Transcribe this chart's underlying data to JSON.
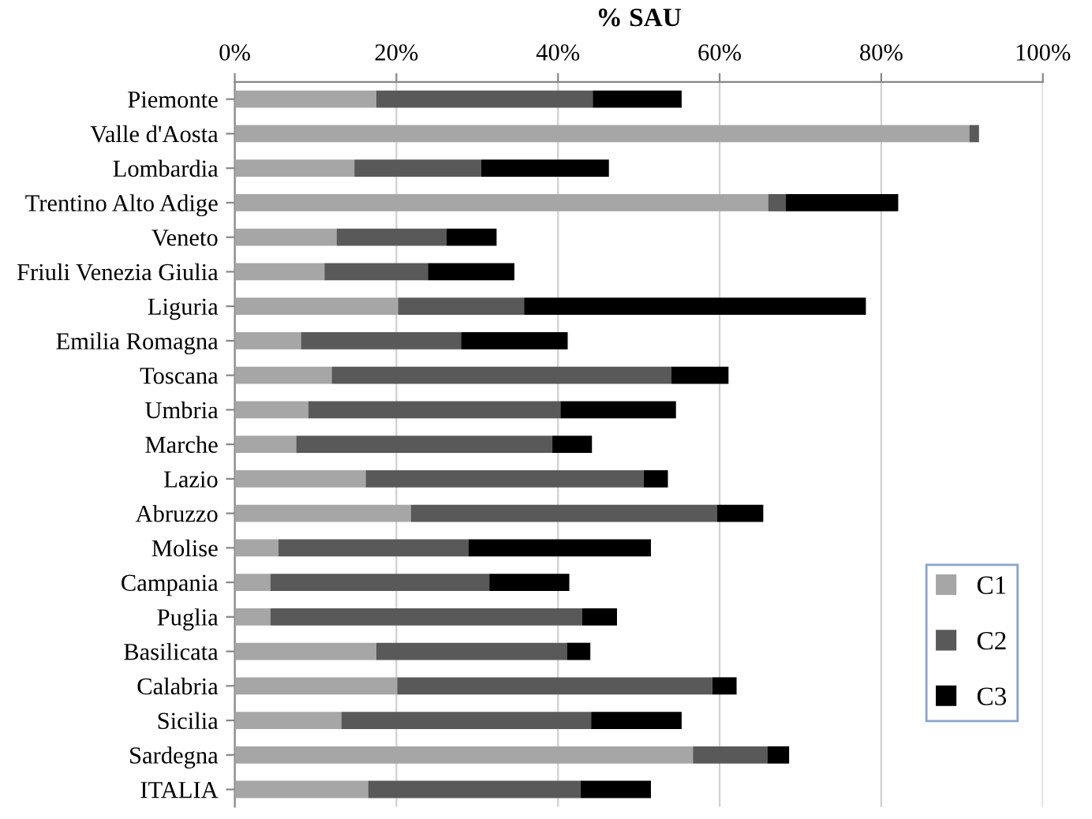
{
  "chart_data": {
    "type": "bar",
    "orientation": "horizontal",
    "stacked": true,
    "xlabel": "% SAU",
    "categories": [
      "Piemonte",
      "Valle d'Aosta",
      "Lombardia",
      "Trentino Alto Adige",
      "Veneto",
      "Friuli Venezia Giulia",
      "Liguria",
      "Emilia Romagna",
      "Toscana",
      "Umbria",
      "Marche",
      "Lazio",
      "Abruzzo",
      "Molise",
      "Campania",
      "Puglia",
      "Basilicata",
      "Calabria",
      "Sicilia",
      "Sardegna",
      "ITALIA"
    ],
    "series": [
      {
        "name": "C1",
        "color": "#a6a6a6",
        "values": [
          17.5,
          90.9,
          14.8,
          66.0,
          12.6,
          11.1,
          20.2,
          8.2,
          12.0,
          9.1,
          7.6,
          16.2,
          21.8,
          5.4,
          4.4,
          4.4,
          17.5,
          20.1,
          13.2,
          56.7,
          16.5
        ]
      },
      {
        "name": "C2",
        "color": "#595959",
        "values": [
          26.8,
          1.2,
          15.7,
          2.2,
          13.6,
          12.8,
          15.6,
          19.8,
          42.0,
          31.2,
          31.7,
          34.4,
          37.9,
          23.5,
          27.1,
          38.6,
          23.6,
          39.0,
          30.9,
          9.2,
          26.3
        ]
      },
      {
        "name": "C3",
        "color": "#000000",
        "values": [
          11.0,
          0,
          15.8,
          13.9,
          6.2,
          10.7,
          42.3,
          13.2,
          7.1,
          14.3,
          4.9,
          3.0,
          5.7,
          22.6,
          9.9,
          4.3,
          2.9,
          3.0,
          11.2,
          2.7,
          8.7
        ]
      }
    ],
    "xlim": [
      0,
      100
    ],
    "xticks": [
      {
        "value": 0,
        "label": "0%"
      },
      {
        "value": 20,
        "label": "20%"
      },
      {
        "value": 40,
        "label": "40%"
      },
      {
        "value": 60,
        "label": "60%"
      },
      {
        "value": 80,
        "label": "80%"
      },
      {
        "value": 100,
        "label": "100%"
      }
    ],
    "grid": "x",
    "legend": "bottom right"
  }
}
